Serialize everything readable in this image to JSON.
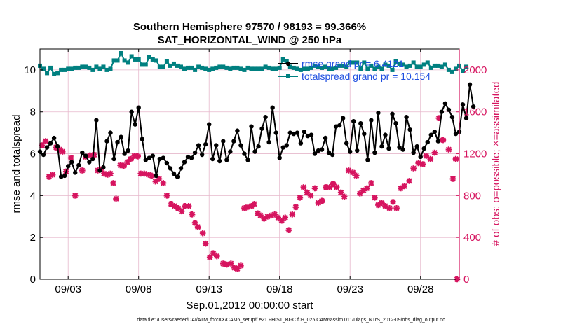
{
  "chart_data": {
    "type": "line",
    "title": "Southern Hemisphere 97570 / 98193 = 99.366%",
    "subtitle": "SAT_HORIZONTAL_WIND @ 250 hPa",
    "xlabel": "Sep.01,2012 00:00:00 start",
    "ylabel_left": "rmse and totalspread",
    "ylabel_right": "# of obs: o=possible; ×=assimilated",
    "footer": "data file: /Users/raeder/DAI/ATM_forcXX/CAM6_setup/f.e21.FHIST_BGC.f09_025.CAM6assim.011/Diags_NTrS_2012-09/obs_diag_output.nc",
    "x_range": [
      1.0,
      30.75
    ],
    "y_left_range": [
      0,
      11
    ],
    "y_right_range": [
      0,
      2200
    ],
    "x_ticks": [
      3,
      8,
      13,
      18,
      23,
      28
    ],
    "x_tick_labels": [
      "09/03",
      "09/08",
      "09/13",
      "09/18",
      "09/23",
      "09/28"
    ],
    "y_left_ticks": [
      0,
      2,
      4,
      6,
      8,
      10
    ],
    "y_left_tick_labels": [
      "0",
      "2",
      "4",
      "6",
      "8",
      "10"
    ],
    "y_right_ticks": [
      0,
      400,
      800,
      1200,
      1600,
      2000
    ],
    "y_right_tick_labels": [
      "0",
      "400",
      "800",
      "1200",
      "1600",
      "2000"
    ],
    "grid": true,
    "legend_position": "top-right",
    "colors": {
      "rmse": "#000000",
      "totalspread": "#008080",
      "obs": "#d6145f",
      "legend_text": "#1f4fe0",
      "grid": "#e6b8cc"
    },
    "series": [
      {
        "name": "rmse grand pr = 6.4121",
        "axis": "left",
        "values": [
          6.1,
          5.95,
          6.3,
          6.5,
          6.75,
          6.35,
          4.9,
          4.95,
          5.4,
          5.6,
          5.1,
          5.45,
          6.05,
          5.9,
          5.6,
          5.75,
          7.6,
          5.2,
          5.35,
          6.6,
          7.0,
          5.75,
          6.55,
          6.8,
          6.0,
          6.15,
          8.0,
          7.4,
          8.2,
          6.7,
          5.7,
          5.8,
          5.9,
          4.95,
          5.75,
          5.8,
          5.55,
          5.3,
          5.05,
          4.9,
          5.3,
          5.6,
          5.85,
          5.8,
          6.05,
          6.4,
          5.95,
          6.45,
          7.4,
          5.75,
          6.4,
          5.65,
          6.6,
          5.7,
          6.1,
          6.6,
          7.1,
          6.4,
          6.0,
          5.7,
          7.3,
          6.1,
          6.35,
          7.2,
          7.75,
          6.55,
          8.2,
          7.0,
          5.8,
          6.3,
          6.4,
          7.0,
          6.95,
          7.0,
          6.5,
          7.05,
          6.85,
          6.9,
          6.0,
          6.15,
          6.2,
          6.75,
          6.05,
          5.95,
          7.3,
          7.35,
          7.7,
          6.5,
          6.1,
          7.55,
          6.15,
          7.45,
          6.95,
          5.7,
          7.6,
          6.05,
          7.95,
          6.35,
          6.9,
          6.25,
          7.9,
          7.45,
          6.3,
          6.2,
          7.75,
          7.15,
          6.05,
          6.35,
          5.85,
          6.25,
          6.55,
          6.9,
          7.05,
          6.6,
          8.0,
          8.4,
          8.1,
          7.75,
          6.95,
          7.05,
          8.35,
          7.7,
          9.3,
          8.25
        ]
      },
      {
        "name": "totalspread grand pr = 10.154",
        "axis": "left",
        "values": [
          10.2,
          10.05,
          9.85,
          10.1,
          9.8,
          9.85,
          10.0,
          10.0,
          10.05,
          10.05,
          10.1,
          10.1,
          10.15,
          10.15,
          10.1,
          10.0,
          10.15,
          10.05,
          10.15,
          10.0,
          10.05,
          10.45,
          10.45,
          10.8,
          10.45,
          10.35,
          10.65,
          10.5,
          10.5,
          10.25,
          10.25,
          10.6,
          10.5,
          10.45,
          10.15,
          10.15,
          10.4,
          10.2,
          10.3,
          10.2,
          10.15,
          10.05,
          10.1,
          10.1,
          10.0,
          10.15,
          10.1,
          10.05,
          10.0,
          10.05,
          10.1,
          10.15,
          10.15,
          10.1,
          10.05,
          10.1,
          10.1,
          10.05,
          10.0,
          10.1,
          10.05,
          10.05,
          10.05,
          10.05,
          10.15,
          10.1,
          10.05,
          10.05,
          10.1,
          10.5,
          10.4,
          10.15,
          10.1,
          10.05,
          10.0,
          10.05,
          10.05,
          10.1,
          10.2,
          10.15,
          10.1,
          10.15,
          10.05,
          10.05,
          10.1,
          10.2,
          10.2,
          10.15,
          10.35,
          10.35,
          10.35,
          10.05,
          10.35,
          10.05,
          10.2,
          10.05,
          10.15,
          10.05,
          10.25,
          10.2,
          10.0,
          10.4,
          10.3,
          10.25,
          10.15,
          10.2,
          10.35,
          10.15,
          10.15,
          10.25,
          10.35,
          10.1,
          10.2,
          10.2,
          10.15,
          10.25,
          10.0,
          9.9,
          10.05,
          10.2,
          9.95,
          10.15
        ]
      },
      {
        "name": "obs assimilated",
        "axis": "right",
        "marker": "x",
        "points": [
          [
            1.15,
            1280
          ],
          [
            1.4,
            1320
          ],
          [
            1.65,
            980
          ],
          [
            1.9,
            1000
          ],
          [
            2.15,
            1260
          ],
          [
            2.4,
            1240
          ],
          [
            2.6,
            1220
          ],
          [
            2.85,
            1030
          ],
          [
            3.2,
            1160
          ],
          [
            3.5,
            800
          ],
          [
            4.0,
            1040
          ],
          [
            4.25,
            1170
          ],
          [
            4.55,
            1185
          ],
          [
            4.85,
            1190
          ],
          [
            5.1,
            1040
          ],
          [
            5.35,
            1050
          ],
          [
            5.55,
            1010
          ],
          [
            5.8,
            1000
          ],
          [
            6.0,
            1010
          ],
          [
            6.2,
            920
          ],
          [
            6.4,
            770
          ],
          [
            6.7,
            1090
          ],
          [
            6.95,
            1085
          ],
          [
            7.2,
            1120
          ],
          [
            7.45,
            1150
          ],
          [
            7.7,
            1180
          ],
          [
            7.95,
            1175
          ],
          [
            8.15,
            1010
          ],
          [
            8.4,
            1010
          ],
          [
            8.7,
            1000
          ],
          [
            8.95,
            990
          ],
          [
            9.2,
            935
          ],
          [
            9.45,
            960
          ],
          [
            9.75,
            920
          ],
          [
            10.0,
            800
          ],
          [
            10.3,
            720
          ],
          [
            10.55,
            700
          ],
          [
            10.8,
            680
          ],
          [
            11.05,
            650
          ],
          [
            11.3,
            700
          ],
          [
            11.55,
            700
          ],
          [
            11.8,
            620
          ],
          [
            12.0,
            540
          ],
          [
            12.2,
            500
          ],
          [
            12.55,
            440
          ],
          [
            12.75,
            340
          ],
          [
            13.05,
            210
          ],
          [
            13.3,
            250
          ],
          [
            13.55,
            220
          ],
          [
            14.0,
            150
          ],
          [
            14.25,
            140
          ],
          [
            14.55,
            150
          ],
          [
            14.8,
            110
          ],
          [
            15.0,
            100
          ],
          [
            15.25,
            130
          ],
          [
            15.5,
            680
          ],
          [
            15.75,
            690
          ],
          [
            16.0,
            700
          ],
          [
            16.2,
            720
          ],
          [
            16.45,
            630
          ],
          [
            16.65,
            610
          ],
          [
            16.9,
            580
          ],
          [
            17.15,
            600
          ],
          [
            17.4,
            610
          ],
          [
            17.65,
            620
          ],
          [
            17.9,
            590
          ],
          [
            18.15,
            560
          ],
          [
            18.4,
            590
          ],
          [
            18.65,
            470
          ],
          [
            18.9,
            620
          ],
          [
            19.15,
            690
          ],
          [
            19.45,
            780
          ],
          [
            19.7,
            880
          ],
          [
            19.95,
            830
          ],
          [
            20.2,
            800
          ],
          [
            20.5,
            870
          ],
          [
            20.75,
            730
          ],
          [
            21.0,
            750
          ],
          [
            21.3,
            880
          ],
          [
            21.55,
            880
          ],
          [
            21.8,
            910
          ],
          [
            22.05,
            880
          ],
          [
            22.35,
            830
          ],
          [
            22.6,
            790
          ],
          [
            22.9,
            1040
          ],
          [
            23.2,
            1020
          ],
          [
            23.45,
            990
          ],
          [
            23.7,
            820
          ],
          [
            23.95,
            850
          ],
          [
            24.2,
            870
          ],
          [
            24.5,
            920
          ],
          [
            24.75,
            780
          ],
          [
            25.0,
            710
          ],
          [
            25.25,
            730
          ],
          [
            25.5,
            700
          ],
          [
            25.8,
            680
          ],
          [
            26.05,
            740
          ],
          [
            26.3,
            680
          ],
          [
            26.6,
            870
          ],
          [
            26.85,
            890
          ],
          [
            27.2,
            940
          ],
          [
            27.5,
            1060
          ],
          [
            27.85,
            1110
          ],
          [
            28.15,
            1100
          ],
          [
            28.4,
            1180
          ],
          [
            28.7,
            1150
          ],
          [
            29.0,
            1210
          ],
          [
            29.3,
            1540
          ],
          [
            29.6,
            1330
          ],
          [
            30.0,
            1240
          ],
          [
            30.3,
            960
          ],
          [
            30.5,
            1150
          ],
          [
            30.6,
            0
          ]
        ]
      }
    ]
  }
}
